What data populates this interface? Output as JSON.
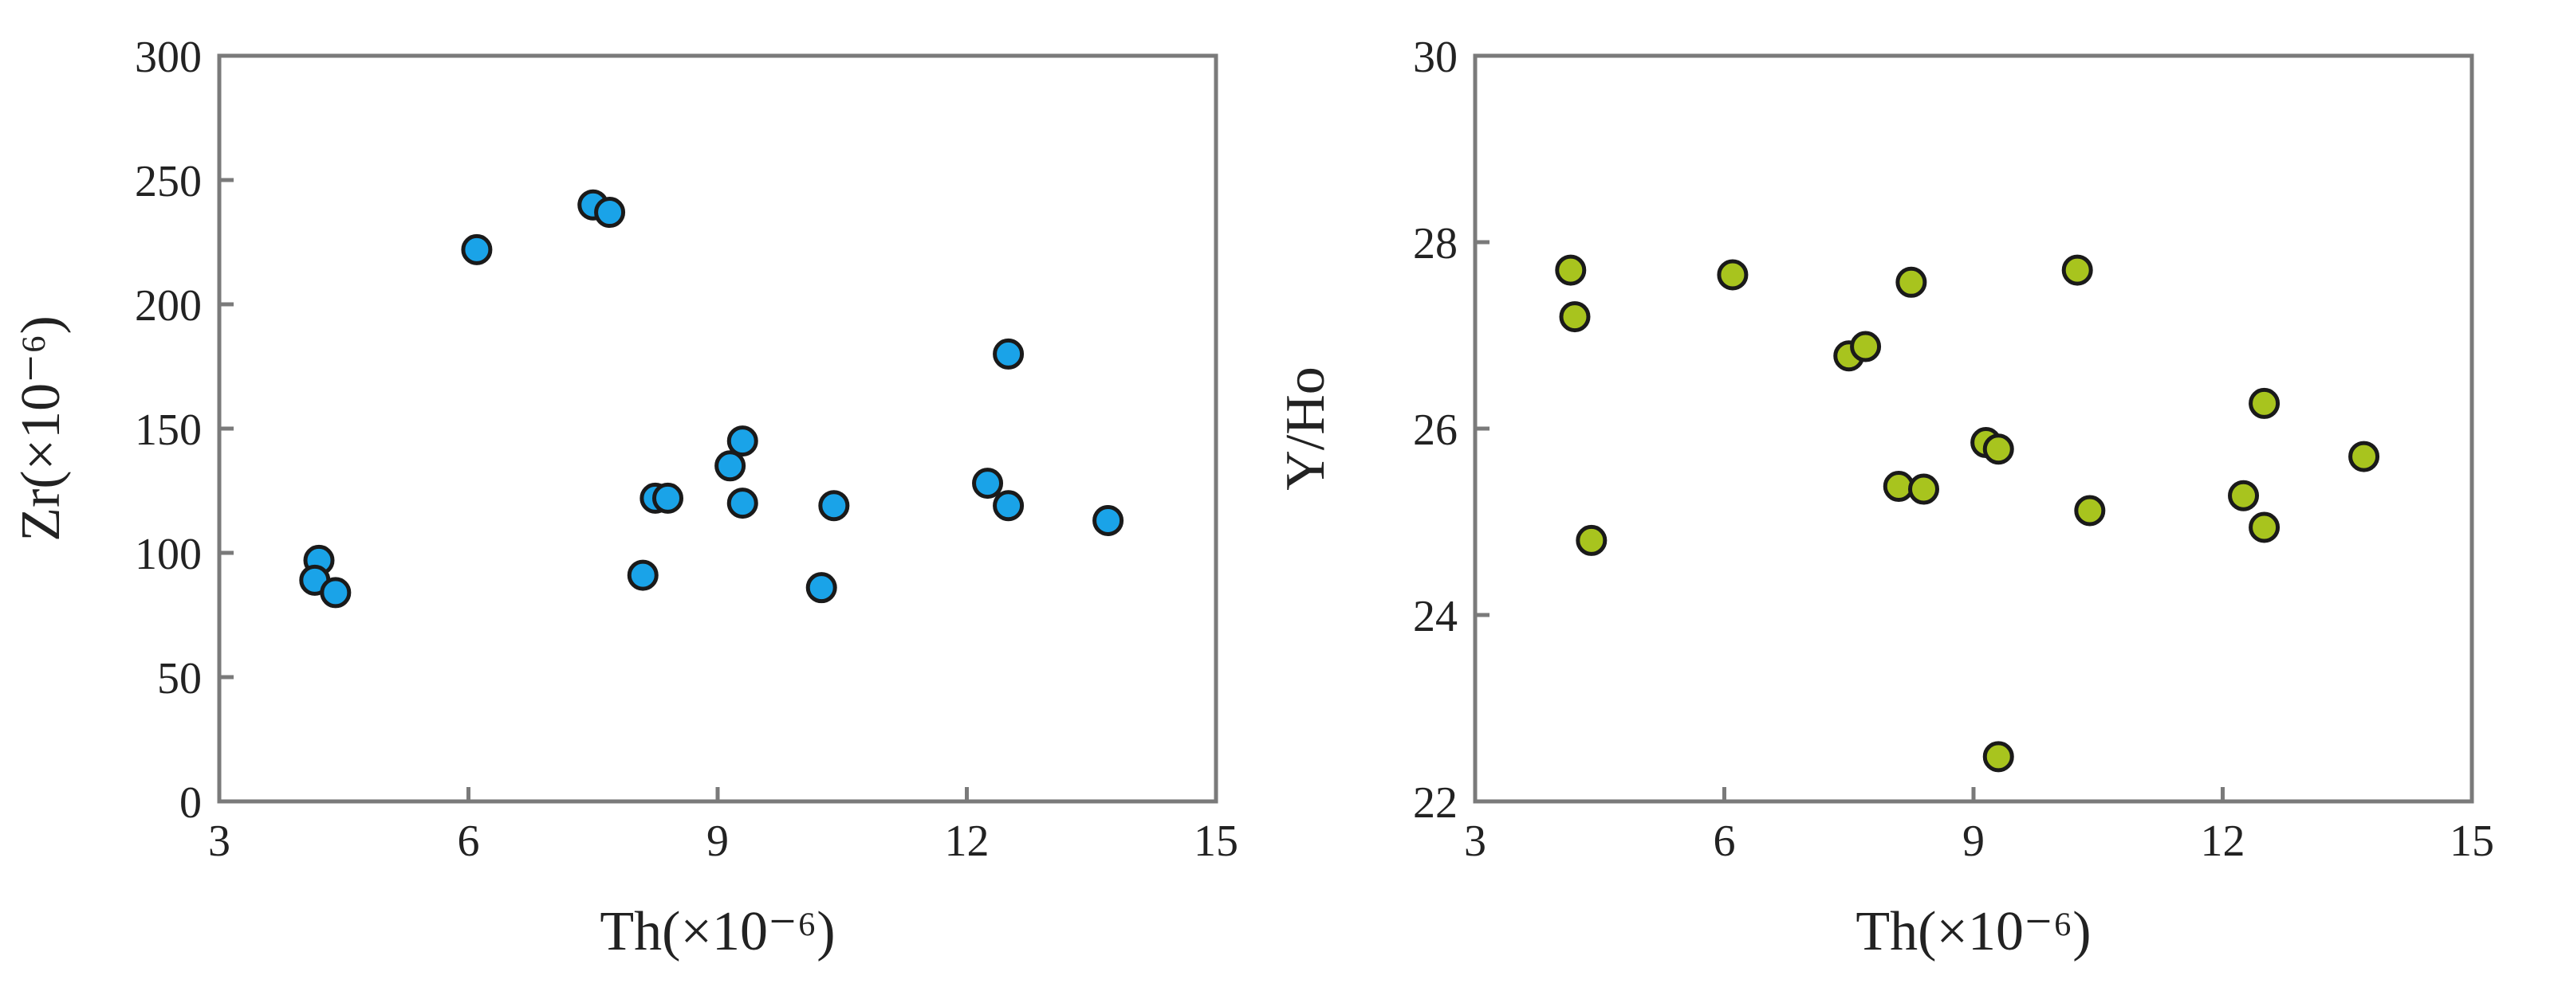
{
  "chart_data": [
    {
      "type": "scatter",
      "xlabel": "Th(×10⁻⁶)",
      "ylabel": "Zr(×10⁻⁶)",
      "xlim": [
        3,
        15
      ],
      "ylim": [
        0,
        300
      ],
      "xticks": [
        3,
        6,
        9,
        12,
        15
      ],
      "yticks": [
        0,
        50,
        100,
        150,
        200,
        250,
        300
      ],
      "grid": false,
      "color": "#1aa3e8",
      "points": [
        {
          "x": 4.2,
          "y": 97
        },
        {
          "x": 4.15,
          "y": 89
        },
        {
          "x": 4.4,
          "y": 84
        },
        {
          "x": 6.1,
          "y": 222
        },
        {
          "x": 7.5,
          "y": 240
        },
        {
          "x": 7.7,
          "y": 237
        },
        {
          "x": 8.1,
          "y": 91
        },
        {
          "x": 8.25,
          "y": 122
        },
        {
          "x": 8.4,
          "y": 122
        },
        {
          "x": 9.15,
          "y": 135
        },
        {
          "x": 9.3,
          "y": 145
        },
        {
          "x": 9.3,
          "y": 120
        },
        {
          "x": 10.25,
          "y": 86
        },
        {
          "x": 10.4,
          "y": 119
        },
        {
          "x": 12.25,
          "y": 128
        },
        {
          "x": 12.5,
          "y": 180
        },
        {
          "x": 12.5,
          "y": 119
        },
        {
          "x": 13.7,
          "y": 113
        }
      ]
    },
    {
      "type": "scatter",
      "xlabel": "Th(×10⁻⁶)",
      "ylabel": "Y/Ho",
      "xlim": [
        3,
        15
      ],
      "ylim": [
        22,
        30
      ],
      "xticks": [
        3,
        6,
        9,
        12,
        15
      ],
      "yticks": [
        22,
        24,
        26,
        28,
        30
      ],
      "grid": false,
      "color": "#a8c41e",
      "points": [
        {
          "x": 4.15,
          "y": 27.7
        },
        {
          "x": 4.2,
          "y": 27.2
        },
        {
          "x": 4.4,
          "y": 24.8
        },
        {
          "x": 6.1,
          "y": 27.65
        },
        {
          "x": 7.5,
          "y": 26.78
        },
        {
          "x": 7.7,
          "y": 26.88
        },
        {
          "x": 8.1,
          "y": 25.38
        },
        {
          "x": 8.25,
          "y": 27.57
        },
        {
          "x": 8.4,
          "y": 25.35
        },
        {
          "x": 9.15,
          "y": 25.85
        },
        {
          "x": 9.3,
          "y": 25.78
        },
        {
          "x": 9.3,
          "y": 22.48
        },
        {
          "x": 10.25,
          "y": 27.7
        },
        {
          "x": 10.4,
          "y": 25.12
        },
        {
          "x": 12.25,
          "y": 25.28
        },
        {
          "x": 12.5,
          "y": 26.27
        },
        {
          "x": 12.5,
          "y": 24.94
        },
        {
          "x": 13.7,
          "y": 25.7
        }
      ]
    }
  ]
}
